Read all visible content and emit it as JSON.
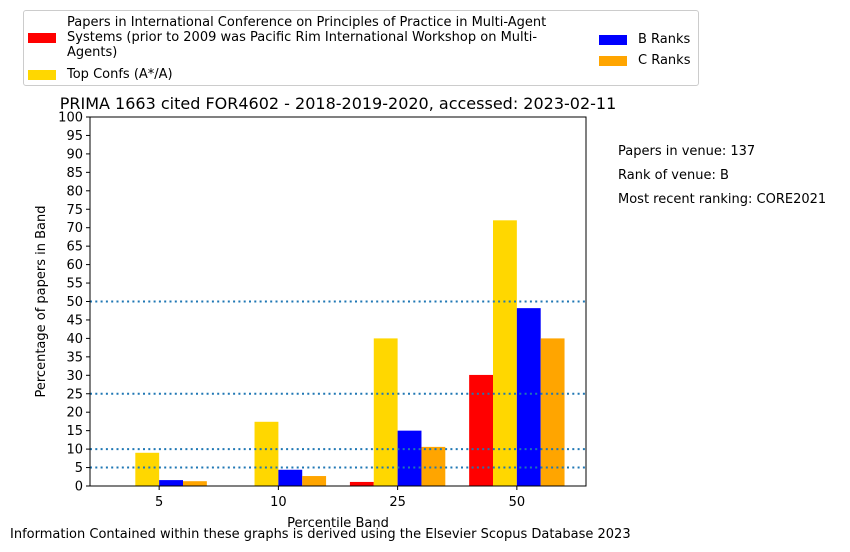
{
  "chart_data": {
    "type": "bar",
    "title": "PRIMA 1663 cited FOR4602 - 2018-2019-2020, accessed: 2023-02-11",
    "xlabel": "Percentile Band",
    "ylabel": "Percentage of papers in Band",
    "categories": [
      "5",
      "10",
      "25",
      "50"
    ],
    "ylim": [
      0,
      100
    ],
    "yticks": [
      0,
      5,
      10,
      15,
      20,
      25,
      30,
      35,
      40,
      45,
      50,
      55,
      60,
      65,
      70,
      75,
      80,
      85,
      90,
      95,
      100
    ],
    "reference_lines": [
      5,
      10,
      25,
      50
    ],
    "reference_line_color": "#1f77b4",
    "grid": false,
    "legend_placement": "top",
    "series": [
      {
        "name": "Papers in International Conference on Principles of Practice in Multi-Agent Systems (prior to 2009 was Pacific Rim International Workshop on Multi-Agents)",
        "color": "#ff0000",
        "values": [
          0,
          0,
          1.1,
          30.1
        ]
      },
      {
        "name": "Top Confs (A*/A)",
        "color": "#ffd700",
        "values": [
          9,
          17.4,
          40,
          72
        ]
      },
      {
        "name": "B Ranks",
        "color": "#0000ff",
        "values": [
          1.6,
          4.4,
          15,
          48.2
        ]
      },
      {
        "name": "C Ranks",
        "color": "#ffa500",
        "values": [
          1.3,
          2.7,
          10.6,
          40
        ]
      }
    ]
  },
  "legend": {
    "venue_label": "Papers in International Conference on Principles of Practice in Multi-Agent Systems (prior to 2009 was Pacific Rim International Workshop on Multi-Agents)",
    "top_label": "Top Confs (A*/A)",
    "b_label": "B Ranks",
    "c_label": "C Ranks"
  },
  "notes": {
    "papers_in_venue": "Papers in venue: 137",
    "rank_of_venue": "Rank of venue: B",
    "recent_ranking": "Most recent ranking: CORE2021"
  },
  "footer": "Information Contained within these graphs is derived using the Elsevier Scopus Database 2023"
}
